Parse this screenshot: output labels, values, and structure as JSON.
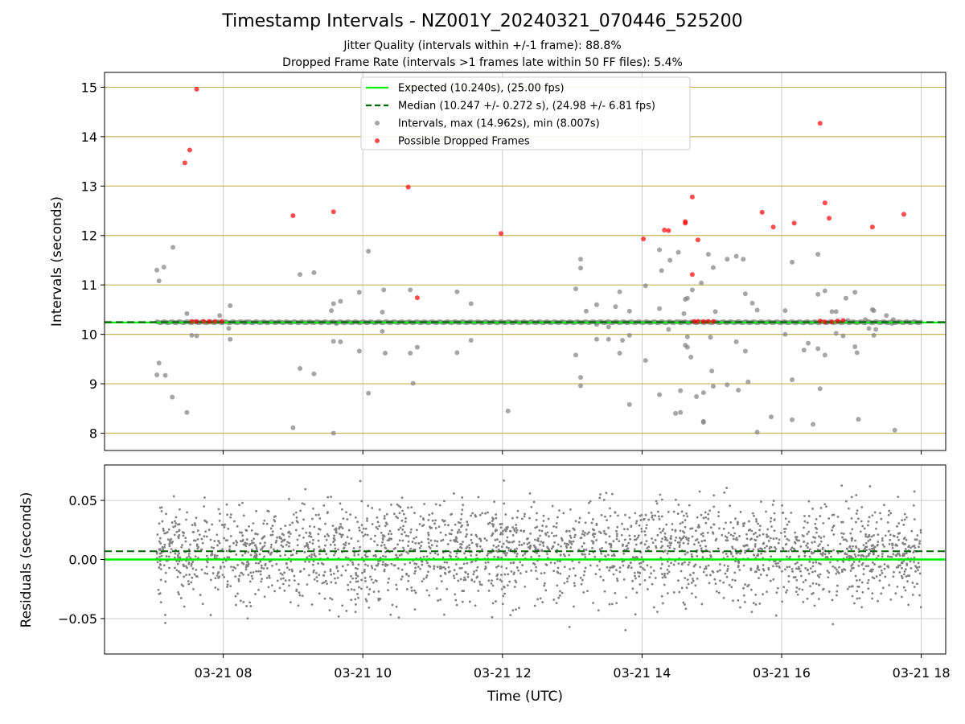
{
  "chart_data": [
    {
      "type": "scatter",
      "title": "Timestamp Intervals - NZ001Y_20240321_070446_525200",
      "subtitle_1": "Jitter Quality (intervals within +/-1 frame): 88.8%",
      "subtitle_2": "Dropped Frame Rate (intervals >1 frames late within 50 FF files): 5.4%",
      "xlabel": "",
      "ylabel": "Intervals (seconds)",
      "xlim_hours": [
        6.3,
        18.35
      ],
      "ylim": [
        7.65,
        15.3
      ],
      "yticks": [
        8,
        9,
        10,
        11,
        12,
        13,
        14,
        15
      ],
      "grid": "on",
      "legend_position": "top-center",
      "colors": {
        "expected": "#00ee00",
        "median": "#006400",
        "intervals": "#808080",
        "dropped": "#ff0000",
        "hgrid": "#c8b45a",
        "vgrid": "#cccccc"
      },
      "expected_value": 10.24,
      "median_value": 10.247,
      "legend": [
        {
          "key": "expected",
          "label": "Expected (10.240s), (25.00 fps)"
        },
        {
          "key": "median",
          "label": "Median (10.247 +/- 0.272 s), (24.98 +/- 6.81 fps)"
        },
        {
          "key": "intervals",
          "label": "Intervals, max (14.962s), min (8.007s)"
        },
        {
          "key": "dropped",
          "label": "Possible Dropped Frames"
        }
      ],
      "baseline": {
        "x_start_hours": 7.05,
        "x_end_hours": 18.0,
        "value": 10.245
      },
      "gray_points": [
        [
          7.05,
          11.3
        ],
        [
          7.08,
          11.08
        ],
        [
          7.15,
          11.36
        ],
        [
          7.28,
          11.76
        ],
        [
          7.08,
          9.42
        ],
        [
          7.05,
          9.18
        ],
        [
          7.17,
          9.17
        ],
        [
          7.27,
          8.73
        ],
        [
          7.48,
          8.42
        ],
        [
          7.48,
          10.42
        ],
        [
          7.55,
          9.98
        ],
        [
          7.62,
          9.97
        ],
        [
          7.95,
          10.38
        ],
        [
          8.1,
          10.58
        ],
        [
          8.08,
          10.12
        ],
        [
          8.1,
          9.9
        ],
        [
          8.32,
          10.25
        ],
        [
          9.0,
          8.11
        ],
        [
          9.1,
          11.21
        ],
        [
          9.1,
          9.31
        ],
        [
          9.3,
          11.25
        ],
        [
          9.3,
          9.2
        ],
        [
          9.55,
          10.48
        ],
        [
          9.58,
          10.62
        ],
        [
          9.58,
          9.86
        ],
        [
          9.58,
          8.0
        ],
        [
          9.62,
          10.22
        ],
        [
          9.68,
          9.85
        ],
        [
          9.68,
          10.67
        ],
        [
          9.95,
          10.85
        ],
        [
          9.95,
          9.66
        ],
        [
          10.08,
          11.68
        ],
        [
          10.08,
          8.81
        ],
        [
          10.28,
          10.45
        ],
        [
          10.28,
          10.06
        ],
        [
          10.3,
          10.9
        ],
        [
          10.32,
          9.62
        ],
        [
          10.68,
          10.9
        ],
        [
          10.68,
          9.62
        ],
        [
          10.72,
          9.01
        ],
        [
          10.78,
          9.74
        ],
        [
          11.35,
          10.86
        ],
        [
          11.35,
          9.63
        ],
        [
          11.55,
          10.62
        ],
        [
          11.55,
          9.88
        ],
        [
          12.08,
          8.45
        ],
        [
          13.05,
          10.92
        ],
        [
          13.05,
          9.58
        ],
        [
          13.12,
          11.52
        ],
        [
          13.12,
          11.34
        ],
        [
          13.12,
          9.13
        ],
        [
          13.12,
          8.96
        ],
        [
          13.2,
          10.47
        ],
        [
          13.35,
          10.6
        ],
        [
          13.35,
          10.2
        ],
        [
          13.35,
          9.9
        ],
        [
          13.52,
          10.15
        ],
        [
          13.52,
          9.9
        ],
        [
          13.62,
          10.56
        ],
        [
          13.68,
          10.86
        ],
        [
          13.68,
          9.62
        ],
        [
          13.72,
          9.88
        ],
        [
          13.82,
          10.47
        ],
        [
          13.82,
          9.98
        ],
        [
          13.82,
          8.58
        ],
        [
          14.05,
          10.98
        ],
        [
          14.05,
          9.47
        ],
        [
          14.25,
          11.71
        ],
        [
          14.28,
          11.29
        ],
        [
          14.25,
          10.52
        ],
        [
          14.25,
          8.78
        ],
        [
          14.38,
          10.1
        ],
        [
          14.4,
          11.5
        ],
        [
          14.48,
          8.4
        ],
        [
          14.52,
          11.66
        ],
        [
          14.55,
          10.25
        ],
        [
          14.55,
          8.42
        ],
        [
          14.55,
          8.86
        ],
        [
          14.6,
          10.42
        ],
        [
          14.62,
          10.71
        ],
        [
          14.62,
          9.78
        ],
        [
          14.65,
          10.73
        ],
        [
          14.65,
          9.95
        ],
        [
          14.65,
          9.74
        ],
        [
          14.7,
          9.54
        ],
        [
          14.72,
          10.9
        ],
        [
          14.78,
          8.74
        ],
        [
          14.85,
          11.04
        ],
        [
          14.88,
          8.22
        ],
        [
          14.88,
          8.24
        ],
        [
          14.88,
          8.82
        ],
        [
          14.95,
          11.62
        ],
        [
          14.98,
          9.94
        ],
        [
          15.02,
          11.35
        ],
        [
          15.0,
          9.26
        ],
        [
          15.02,
          8.95
        ],
        [
          15.05,
          10.46
        ],
        [
          15.22,
          11.52
        ],
        [
          15.22,
          8.98
        ],
        [
          15.35,
          11.58
        ],
        [
          15.35,
          9.85
        ],
        [
          15.38,
          8.87
        ],
        [
          15.45,
          11.52
        ],
        [
          15.48,
          10.82
        ],
        [
          15.48,
          9.66
        ],
        [
          15.52,
          9.04
        ],
        [
          15.58,
          10.63
        ],
        [
          15.65,
          10.49
        ],
        [
          15.65,
          8.02
        ],
        [
          15.85,
          8.33
        ],
        [
          16.05,
          10.48
        ],
        [
          16.05,
          10.0
        ],
        [
          16.15,
          11.46
        ],
        [
          16.15,
          9.08
        ],
        [
          16.15,
          8.27
        ],
        [
          16.32,
          9.68
        ],
        [
          16.38,
          9.82
        ],
        [
          16.45,
          8.18
        ],
        [
          16.52,
          10.81
        ],
        [
          16.52,
          11.62
        ],
        [
          16.52,
          9.71
        ],
        [
          16.55,
          8.9
        ],
        [
          16.62,
          10.88
        ],
        [
          16.62,
          9.58
        ],
        [
          16.72,
          10.46
        ],
        [
          16.78,
          10.46
        ],
        [
          16.78,
          10.02
        ],
        [
          16.88,
          9.97
        ],
        [
          16.92,
          10.73
        ],
        [
          16.95,
          10.28
        ],
        [
          17.05,
          10.85
        ],
        [
          17.05,
          9.75
        ],
        [
          17.08,
          9.63
        ],
        [
          17.1,
          8.28
        ],
        [
          17.2,
          10.3
        ],
        [
          17.25,
          10.12
        ],
        [
          17.3,
          10.5
        ],
        [
          17.32,
          10.48
        ],
        [
          17.32,
          9.98
        ],
        [
          17.35,
          10.1
        ],
        [
          17.5,
          10.38
        ],
        [
          17.58,
          10.22
        ],
        [
          17.62,
          8.06
        ],
        [
          17.6,
          10.3
        ]
      ],
      "red_points": [
        [
          7.45,
          13.47
        ],
        [
          7.52,
          13.73
        ],
        [
          7.62,
          14.96
        ],
        [
          7.55,
          10.26
        ],
        [
          7.62,
          10.26
        ],
        [
          7.72,
          10.26
        ],
        [
          7.8,
          10.26
        ],
        [
          7.88,
          10.26
        ],
        [
          7.98,
          10.26
        ],
        [
          9.0,
          12.4
        ],
        [
          9.58,
          12.48
        ],
        [
          10.65,
          12.98
        ],
        [
          10.78,
          10.74
        ],
        [
          11.98,
          12.04
        ],
        [
          14.02,
          11.93
        ],
        [
          14.32,
          12.11
        ],
        [
          14.38,
          12.1
        ],
        [
          14.62,
          12.28
        ],
        [
          14.62,
          12.25
        ],
        [
          14.72,
          12.78
        ],
        [
          14.72,
          11.21
        ],
        [
          14.8,
          11.91
        ],
        [
          14.75,
          10.26
        ],
        [
          14.8,
          10.26
        ],
        [
          14.88,
          10.26
        ],
        [
          14.95,
          10.26
        ],
        [
          15.02,
          10.26
        ],
        [
          15.72,
          12.47
        ],
        [
          15.88,
          12.17
        ],
        [
          16.18,
          12.25
        ],
        [
          16.55,
          14.27
        ],
        [
          16.62,
          12.66
        ],
        [
          16.68,
          12.35
        ],
        [
          16.55,
          10.27
        ],
        [
          16.62,
          10.25
        ],
        [
          16.72,
          10.25
        ],
        [
          16.8,
          10.27
        ],
        [
          16.88,
          10.28
        ],
        [
          17.3,
          12.17
        ],
        [
          17.75,
          12.43
        ]
      ]
    },
    {
      "type": "scatter",
      "xlabel": "Time (UTC)",
      "ylabel": "Residuals (seconds)",
      "xlim_hours": [
        6.3,
        18.35
      ],
      "ylim": [
        -0.08,
        0.08
      ],
      "yticks": [
        -0.05,
        0.0,
        0.05
      ],
      "ytick_labels": [
        "−0.05",
        "0.00",
        "0.05"
      ],
      "xticks_hours": [
        8,
        10,
        12,
        14,
        16,
        18
      ],
      "xtick_labels": [
        "03-21 08",
        "03-21 10",
        "03-21 12",
        "03-21 14",
        "03-21 16",
        "03-21 18"
      ],
      "grid": "on",
      "expected_value": 0.0,
      "median_value": 0.007,
      "residual_points": {
        "x_start_hours": 7.05,
        "x_end_hours": 18.0,
        "count": 2600,
        "spread_sd": 0.022
      }
    }
  ]
}
